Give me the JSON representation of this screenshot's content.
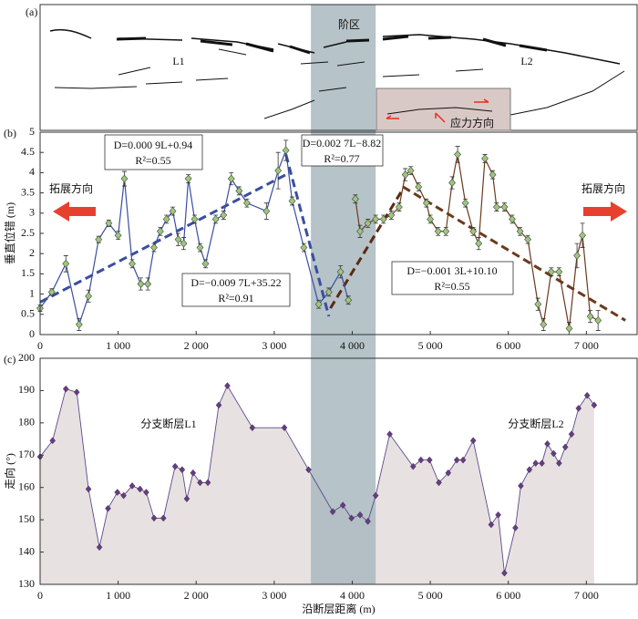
{
  "panel_a": {
    "label": "(a)",
    "zone_label": "阶区",
    "trace_labels": [
      "L1",
      "L2"
    ],
    "stress_label": "应力方向"
  },
  "step_zone": [
    3470,
    4300
  ],
  "chart_data": [
    {
      "type": "line",
      "panel_label": "(b)",
      "ylabel": "垂直位错 (m)",
      "xlim": [
        0,
        7650
      ],
      "ylim": [
        0,
        5
      ],
      "xticks": [
        0,
        {
          "value": 1000,
          "label": "1 000"
        },
        {
          "value": 2000,
          "label": "2 000"
        },
        {
          "value": 3000,
          "label": "3 000"
        },
        {
          "value": 4000,
          "label": "4 000"
        },
        {
          "value": 5000,
          "label": "5 000"
        },
        {
          "value": 6000,
          "label": "6 000"
        },
        {
          "value": 7000,
          "label": "7 000"
        }
      ],
      "yticks": [
        0,
        0.5,
        1,
        1.5,
        2,
        2.5,
        3,
        3.5,
        4,
        4.5,
        5
      ],
      "marker_color": "#9dc87a",
      "series": [
        {
          "color": "#3a4ea0",
          "x": [
            0,
            150,
            330,
            500,
            620,
            750,
            880,
            1000,
            1080,
            1180,
            1290,
            1380,
            1460,
            1540,
            1620,
            1700,
            1770,
            1840,
            1900,
            1980,
            2050,
            2120,
            2250,
            2350,
            2450,
            2550,
            2650,
            2900,
            3050,
            3150,
            3230,
            3380,
            3570,
            3700,
            3850,
            3950
          ],
          "values": [
            0.65,
            1.05,
            1.75,
            0.25,
            0.95,
            2.35,
            2.75,
            2.45,
            3.85,
            1.75,
            1.25,
            1.25,
            2.15,
            2.55,
            2.85,
            3.05,
            2.35,
            2.25,
            3.85,
            2.85,
            2.15,
            1.75,
            2.85,
            2.95,
            3.85,
            3.55,
            3.25,
            3.05,
            4.05,
            4.55,
            3.3,
            2.15,
            0.75,
            1.05,
            1.55,
            0.85
          ],
          "errors": [
            0.08,
            0.08,
            0.2,
            0.15,
            0.15,
            0.08,
            0.08,
            0.1,
            0.18,
            0.1,
            0.15,
            0.15,
            0.1,
            0.1,
            0.1,
            0.1,
            0.15,
            0.15,
            0.1,
            0.1,
            0.1,
            0.1,
            0.1,
            0.1,
            0.15,
            0.1,
            0.1,
            0.2,
            0.45,
            0.25,
            0.1,
            0.1,
            0.1,
            0.1,
            0.15,
            0.1
          ]
        },
        {
          "color": "#6b3a1e",
          "x": [
            4040,
            4100,
            4200,
            4300,
            4400,
            4500,
            4600,
            4680,
            4750,
            4850,
            4950,
            5000,
            5100,
            5200,
            5280,
            5350,
            5450,
            5550,
            5620,
            5700,
            5800,
            5850,
            5950,
            6050,
            6150,
            6250,
            6380,
            6450,
            6550,
            6650,
            6780,
            6880,
            6950,
            7050,
            7150
          ],
          "values": [
            3.35,
            2.55,
            2.75,
            2.85,
            2.85,
            2.95,
            3.15,
            3.95,
            4.05,
            3.65,
            3.25,
            2.85,
            2.55,
            2.55,
            3.75,
            4.45,
            3.25,
            2.55,
            2.25,
            4.35,
            3.95,
            3.15,
            3.15,
            2.85,
            2.55,
            2.35,
            0.75,
            0.25,
            1.55,
            1.55,
            0.15,
            1.95,
            2.45,
            0.45,
            0.35
          ],
          "errors": [
            0.1,
            0.15,
            0.1,
            0.1,
            0.1,
            0.1,
            0.1,
            0.15,
            0.1,
            0.1,
            0.1,
            0.1,
            0.1,
            0.1,
            0.15,
            0.2,
            0.1,
            0.1,
            0.15,
            0.1,
            0.1,
            0.1,
            0.1,
            0.1,
            0.1,
            0.1,
            0.15,
            0.15,
            0.1,
            0.1,
            0.15,
            0.3,
            0.3,
            0.15,
            0.25
          ]
        }
      ],
      "fits": [
        {
          "equation": "D=0.000 9L+0.94",
          "r2": "R²=0.55",
          "color": "#3a4ea0",
          "x": [
            0,
            3150
          ],
          "y": [
            0.8,
            3.95
          ]
        },
        {
          "equation": "D=0.002 7L−8.82",
          "r2": "R²=0.77",
          "color": "#5a2a12",
          "x": [
            3720,
            4650
          ],
          "y": [
            0.65,
            3.6
          ]
        },
        {
          "equation": "D=−0.009 7L+35.22",
          "r2": "R²=0.91",
          "color": "#3a4ea0",
          "x": [
            3150,
            3700
          ],
          "y": [
            4.45,
            0.45
          ]
        },
        {
          "equation": "D=−0.001 3L+10.10",
          "r2": "R²=0.55",
          "color": "#6b3a1e",
          "x": [
            4650,
            7500
          ],
          "y": [
            3.65,
            0.35
          ]
        }
      ],
      "annotations": [
        "拓展方向",
        "拓展方向"
      ]
    },
    {
      "type": "area",
      "panel_label": "(c)",
      "ylabel": "走向 (°)",
      "xlabel": "沿断层距离 (m)",
      "xlim": [
        0,
        7650
      ],
      "ylim": [
        130,
        200
      ],
      "xticks": [
        0,
        {
          "value": 1000,
          "label": "1 000"
        },
        {
          "value": 2000,
          "label": "2 000"
        },
        {
          "value": 3000,
          "label": "3 000"
        },
        {
          "value": 4000,
          "label": "4 000"
        },
        {
          "value": 5000,
          "label": "5 000"
        },
        {
          "value": 6000,
          "label": "6 000"
        },
        {
          "value": 7000,
          "label": "7 000"
        }
      ],
      "yticks": [
        130,
        140,
        150,
        160,
        170,
        180,
        190,
        200
      ],
      "color": "#5a4a8a",
      "fill": "#e8e1e2",
      "marker_color": "#6a3a8a",
      "x": [
        0,
        160,
        330,
        470,
        620,
        760,
        870,
        990,
        1070,
        1180,
        1280,
        1360,
        1460,
        1580,
        1730,
        1820,
        1880,
        1960,
        2050,
        2150,
        2290,
        2400,
        2720,
        3130,
        3440,
        3750,
        3880,
        3990,
        4100,
        4200,
        4300,
        4480,
        4780,
        4880,
        4990,
        5110,
        5230,
        5340,
        5420,
        5550,
        5780,
        5870,
        5950,
        6090,
        6160,
        6270,
        6350,
        6430,
        6500,
        6580,
        6650,
        6730,
        6810,
        6900,
        7010,
        7100
      ],
      "values": [
        169.5,
        174.5,
        190.5,
        189.5,
        159.5,
        141.5,
        153.5,
        158.5,
        157.5,
        160.5,
        159.5,
        158.5,
        150.5,
        150.5,
        166.5,
        165.5,
        156.5,
        164.5,
        161.5,
        161.5,
        185.5,
        191.5,
        178.5,
        178.5,
        165.5,
        152.5,
        154.5,
        150.5,
        151.5,
        149.5,
        157.5,
        176.5,
        166.5,
        168.5,
        168.5,
        161.5,
        164.5,
        168.5,
        168.5,
        174.5,
        148.5,
        151.5,
        133.5,
        147.5,
        160.5,
        165.5,
        167.5,
        167.5,
        173.5,
        170.5,
        167.5,
        172.5,
        176.5,
        184.5,
        188.5,
        185.5
      ],
      "labels": [
        "分支断层L1",
        "分支断层L2"
      ]
    }
  ]
}
